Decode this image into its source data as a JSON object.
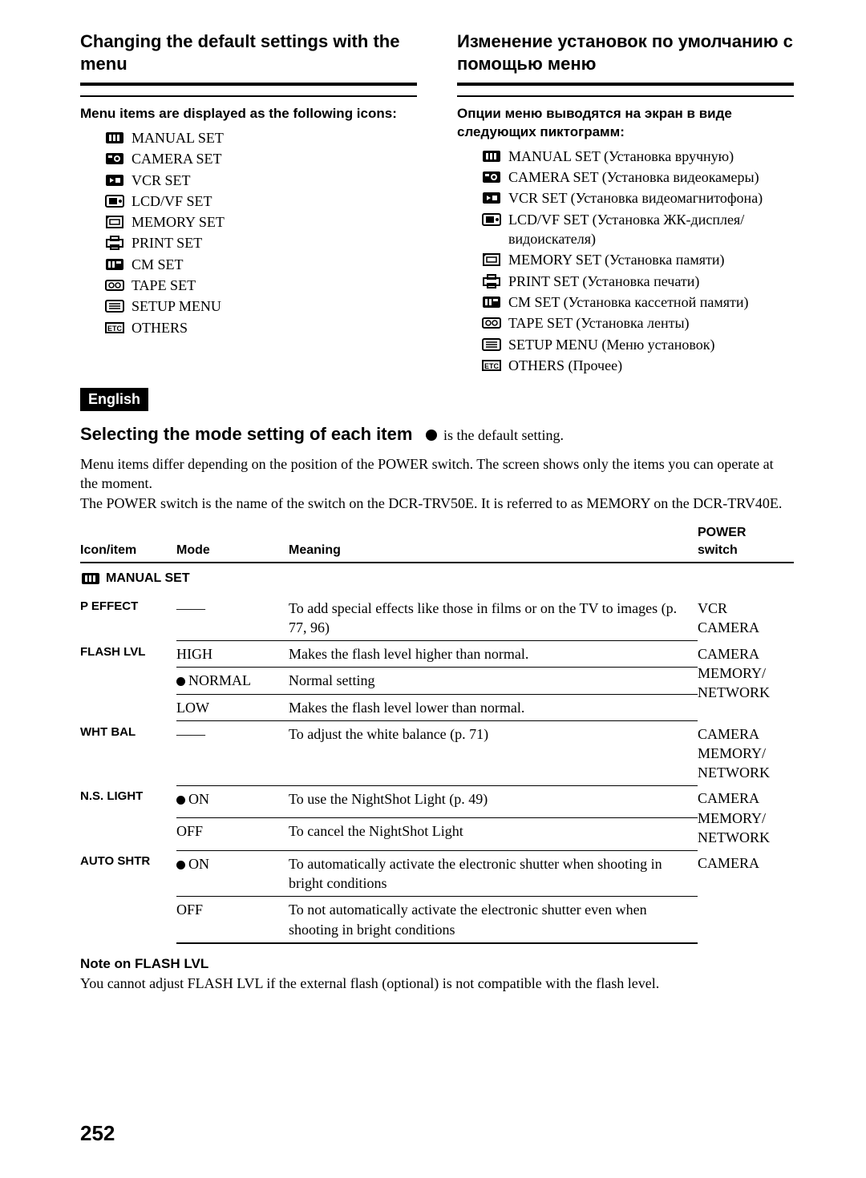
{
  "left": {
    "title": "Changing the default settings with the menu",
    "subhead": "Menu items are displayed as the following icons:",
    "items": [
      {
        "icon": "manual",
        "label": "MANUAL SET"
      },
      {
        "icon": "camera",
        "label": "CAMERA SET"
      },
      {
        "icon": "vcr",
        "label": "VCR SET"
      },
      {
        "icon": "lcd",
        "label": "LCD/VF SET"
      },
      {
        "icon": "memory",
        "label": "MEMORY SET"
      },
      {
        "icon": "print",
        "label": "PRINT SET"
      },
      {
        "icon": "cm",
        "label": "CM SET"
      },
      {
        "icon": "tape",
        "label": "TAPE SET"
      },
      {
        "icon": "setup",
        "label": "SETUP MENU"
      },
      {
        "icon": "etc",
        "label": "OTHERS"
      }
    ]
  },
  "right": {
    "title": "Изменение установок по умолчанию с помощью меню",
    "subhead": "Опции меню выводятся на экран в виде следующих пиктограмм:",
    "items": [
      {
        "icon": "manual",
        "label": "MANUAL SET (Установка вручную)"
      },
      {
        "icon": "camera",
        "label": "CAMERA SET (Установка видеокамеры)"
      },
      {
        "icon": "vcr",
        "label": "VCR SET (Установка видеомагнитофона)"
      },
      {
        "icon": "lcd",
        "label": "LCD/VF SET (Установка ЖК-дисплея/видоискателя)"
      },
      {
        "icon": "memory",
        "label": "MEMORY SET (Установка памяти)"
      },
      {
        "icon": "print",
        "label": "PRINT SET (Установка печати)"
      },
      {
        "icon": "cm",
        "label": "CM SET (Установка кассетной памяти)"
      },
      {
        "icon": "tape",
        "label": "TAPE SET (Установка ленты)"
      },
      {
        "icon": "setup",
        "label": "SETUP MENU (Меню установок)"
      },
      {
        "icon": "etc",
        "label": "OTHERS (Прочее)"
      }
    ]
  },
  "badge": "English",
  "modeHeading": "Selecting the mode setting of each item",
  "modeLegend": "is the default setting.",
  "explain": "Menu items differ depending on the position of the POWER switch. The screen shows only the items you can operate at the moment.\nThe POWER switch is the name of the switch on the DCR-TRV50E. It is referred to as MEMORY on the DCR-TRV40E.",
  "table": {
    "headers": {
      "icon": "Icon/item",
      "mode": "Mode",
      "meaning": "Meaning",
      "power": "POWER switch"
    },
    "group": {
      "icon": "manual",
      "label": "MANUAL SET"
    },
    "rows": [
      {
        "item": "P EFFECT",
        "modes": [
          {
            "default": false,
            "mode": "——",
            "meaning": "To add special effects like those in films or on the TV to images (p. 77, 96)"
          }
        ],
        "power": "VCR\nCAMERA"
      },
      {
        "item": "FLASH LVL",
        "modes": [
          {
            "default": false,
            "mode": "HIGH",
            "meaning": "Makes the flash level higher than normal."
          },
          {
            "default": true,
            "mode": "NORMAL",
            "meaning": "Normal setting"
          },
          {
            "default": false,
            "mode": "LOW",
            "meaning": "Makes the flash level lower than normal."
          }
        ],
        "power": "CAMERA\nMEMORY/\nNETWORK"
      },
      {
        "item": "WHT BAL",
        "modes": [
          {
            "default": false,
            "mode": "——",
            "meaning": "To adjust the white balance (p. 71)"
          }
        ],
        "power": "CAMERA\nMEMORY/\nNETWORK"
      },
      {
        "item": "N.S. LIGHT",
        "modes": [
          {
            "default": true,
            "mode": "ON",
            "meaning": "To use the NightShot Light (p. 49)"
          },
          {
            "default": false,
            "mode": "OFF",
            "meaning": "To cancel the NightShot Light"
          }
        ],
        "power": "CAMERA\nMEMORY/\nNETWORK"
      },
      {
        "item": "AUTO SHTR",
        "modes": [
          {
            "default": true,
            "mode": "ON",
            "meaning": "To automatically activate the electronic shutter when shooting in bright conditions"
          },
          {
            "default": false,
            "mode": "OFF",
            "meaning": "To not automatically activate the electronic shutter even when shooting in bright conditions"
          }
        ],
        "power": "CAMERA"
      }
    ]
  },
  "note": {
    "head": "Note on FLASH LVL",
    "body": "You cannot adjust FLASH LVL if the external flash (optional) is not compatible with the flash level."
  },
  "pageNumber": "252"
}
